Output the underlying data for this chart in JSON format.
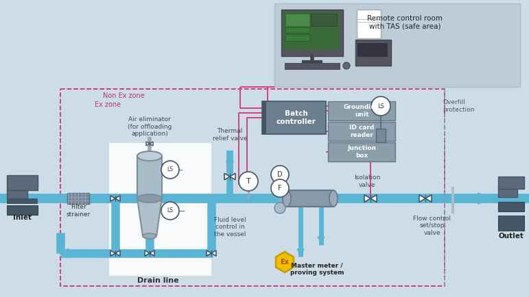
{
  "bg_color": "#cddde8",
  "remote_box_color": "#bccdd8",
  "white_area_color": "#ddeef5",
  "pipe_color": "#5ab4d4",
  "pipe_thin": 8,
  "pink_color": "#d84080",
  "dark_box_color": "#6a8090",
  "medium_box_color": "#8a9faa",
  "vessel_color": "#a8bcc8",
  "vessel_dark": "#8899a8",
  "text_dark": "#333333",
  "text_pink": "#c03070",
  "valve_color": "#556677",
  "ex_border_color": "#cc3377",
  "label_non_ex": "Non Ex zone",
  "label_ex": "Ex zone",
  "label_inlet": "Inlet",
  "label_outlet": "Outlet",
  "label_filter": "Filter\nstrainer",
  "label_air_elim": "Air eliminator\n(for offloading\napplication)",
  "label_thermal": "Thermal\nrelief valve",
  "label_batch": "Batch\ncontroller",
  "label_grounding": "Grounding\nunit",
  "label_idcard": "ID card\nreader",
  "label_junction": "Junction\nbox",
  "label_isolation": "Isolation\nvalve",
  "label_drain": "Drain line",
  "label_fluid": "Fluid level\ncontrol in\nthe vessel",
  "label_master": "Master meter /\nproving system",
  "label_flow": "Flow control\nset/stop\nvalve",
  "label_overfill": "Overfill\nprotection",
  "label_remote": "Remote control room\nwith TAS (safe area)"
}
